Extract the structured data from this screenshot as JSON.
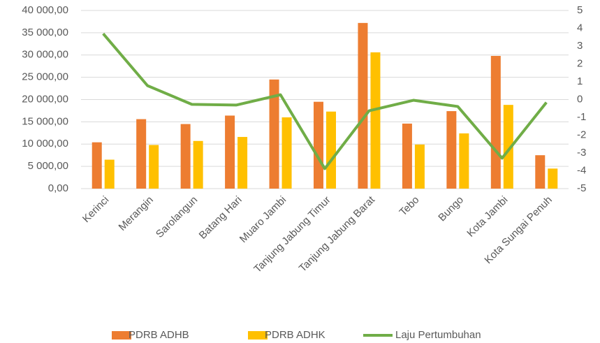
{
  "chart_data": {
    "type": "bar-line",
    "categories": [
      "Kerinci",
      "Merangin",
      "Sarolangun",
      "Batang Hari",
      "Muaro Jambi",
      "Tanjung Jabung Timur",
      "Tanjung Jabung Barat",
      "Tebo",
      "Bungo",
      "Kota Jambi",
      "Kota Sungai Penuh"
    ],
    "series": [
      {
        "name": "PDRB ADHB",
        "color": "#ed7d31",
        "kind": "bar",
        "values": [
          10400,
          15600,
          14500,
          16400,
          24500,
          19500,
          37200,
          14600,
          17400,
          29800,
          7500
        ]
      },
      {
        "name": "PDRB ADHK",
        "color": "#ffc000",
        "kind": "bar",
        "values": [
          6500,
          9800,
          10700,
          11600,
          16000,
          17300,
          30600,
          9900,
          12400,
          18800,
          4500
        ]
      },
      {
        "name": "Laju Pertumbuhan",
        "color": "#70ad47",
        "kind": "line",
        "axis": "y2",
        "values": [
          3.7,
          0.78,
          -0.27,
          -0.31,
          0.27,
          -3.88,
          -0.63,
          -0.04,
          -0.39,
          -3.29,
          -0.16
        ]
      }
    ],
    "ylim": [
      0,
      40000
    ],
    "yticks": [
      {
        "value": 0,
        "label": "0,00"
      },
      {
        "value": 5000,
        "label": "5 000,00"
      },
      {
        "value": 10000,
        "label": "10 000,00"
      },
      {
        "value": 15000,
        "label": "15 000,00"
      },
      {
        "value": 20000,
        "label": "20 000,00"
      },
      {
        "value": 25000,
        "label": "25 000,00"
      },
      {
        "value": 30000,
        "label": "30 000,00"
      },
      {
        "value": 35000,
        "label": "35 000,00"
      },
      {
        "value": 40000,
        "label": "40 000,00"
      }
    ],
    "y2lim": [
      -5,
      5
    ],
    "y2ticks": [
      -5,
      -4,
      -3,
      -2,
      -1,
      0,
      1,
      2,
      3,
      4,
      5
    ],
    "grid": true,
    "legend": "bottom"
  }
}
